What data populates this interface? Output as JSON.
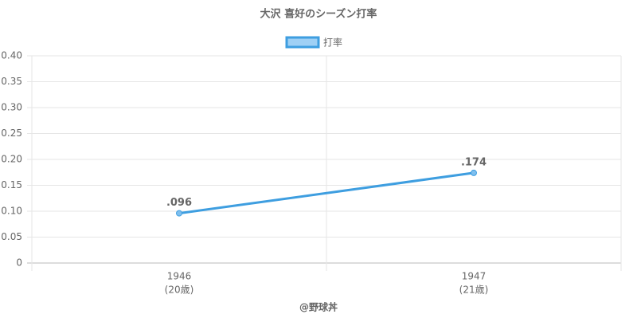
{
  "chart_data": {
    "type": "line",
    "title": "大沢 喜好のシーズン打率",
    "categories": [
      "1946",
      "1947"
    ],
    "category_sublabels": [
      "(20歳)",
      "(21歳)"
    ],
    "series": [
      {
        "name": "打率",
        "color": "#3e9ee0",
        "values": [
          0.096,
          0.174
        ],
        "value_labels": [
          ".096",
          ".174"
        ]
      }
    ],
    "ylim": [
      0,
      0.4
    ],
    "yticks": [
      0,
      0.05,
      {
        "value": 0.1,
        "label": "0.10"
      },
      0.15,
      {
        "value": 0.2,
        "label": "0.20"
      },
      0.25,
      {
        "value": 0.3,
        "label": "0.30"
      },
      0.35,
      {
        "value": 0.4,
        "label": "0.40"
      }
    ],
    "grid": true,
    "legend": "top",
    "credit": "@野球丼"
  }
}
